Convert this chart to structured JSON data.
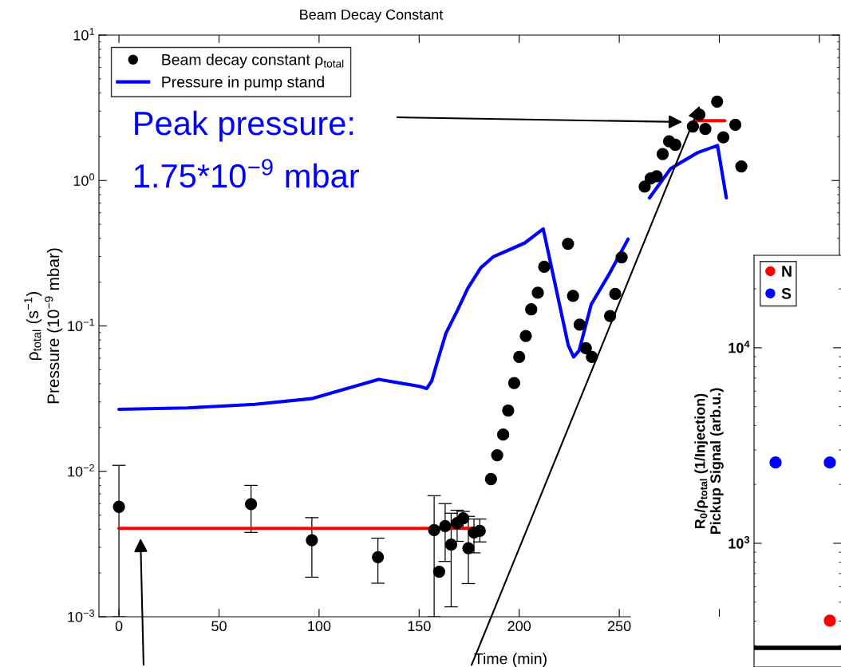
{
  "chart_data": [
    {
      "type": "scatter",
      "title": "Beam Decay Constant",
      "xlabel": "Time (min)",
      "ylabel": "ρ$_{total}$ (s$^{−1}$)\nPressure (10$^{−9}$ mbar)",
      "log": "y",
      "grid": false,
      "legend": "top left",
      "marker": "circle",
      "xlim": [
        -10,
        360
      ],
      "xticks": [
        0,
        50,
        100,
        150,
        200,
        250,
        {
          "value": 300,
          "label": null
        },
        {
          "value": 350,
          "label": null
        }
      ],
      "ylim": [
        0.001,
        10
      ],
      "yticks": [
        {
          "value": 0.001,
          "label": "10$^{−3}$"
        },
        {
          "value": 0.01,
          "label": "10$^{−2}$"
        },
        {
          "value": 0.1,
          "label": "10$^{−1}$"
        },
        {
          "value": 1,
          "label": "10$^{0}$"
        },
        {
          "value": 10,
          "label": "10$^{1}$"
        }
      ],
      "annotations": [
        "Peak pressure:\n1.75*10$^{−9}$ mbar"
      ],
      "series": [
        {
          "name": "Beam decay constant ρ$_{total}$",
          "type": "scatter",
          "color": "#000000",
          "x": [
            0,
            66,
            96.4,
            129.4,
            157.5,
            160,
            163,
            166,
            169,
            172,
            174.6,
            177.4,
            180.3,
            185.9,
            189,
            192,
            194.5,
            197.5,
            200,
            203.3,
            206,
            209.3,
            212.5,
            224.4,
            226.9,
            230.2,
            233.3,
            236.3,
            245.4,
            248,
            251.2,
            262.7,
            265.7,
            268.7,
            271.7,
            274.9,
            278,
            286.8,
            290,
            293,
            298.9,
            302,
            308,
            311
          ],
          "values": [
            0.0057,
            0.00595,
            0.00336,
            0.00257,
            0.00394,
            0.00204,
            0.0042,
            0.00313,
            0.0044,
            0.00475,
            0.00296,
            0.0038,
            0.0039,
            0.00884,
            0.0129,
            0.0179,
            0.0262,
            0.0405,
            0.0612,
            0.0853,
            0.13,
            0.169,
            0.255,
            0.367,
            0.161,
            0.102,
            0.0703,
            0.0612,
            0.117,
            0.166,
            0.296,
            0.908,
            1.033,
            1.07,
            1.52,
            1.86,
            1.76,
            2.35,
            2.84,
            2.26,
            3.49,
            1.98,
            2.42,
            1.25
          ],
          "errors": [
            [
              0.001,
              0.011
            ],
            [
              0.0038,
              0.008
            ],
            [
              0.00187,
              0.0048
            ],
            [
              0.0017,
              0.00347
            ],
            [
              0.001,
              0.0068
            ],
            null,
            [
              0.0024,
              0.006
            ],
            [
              0.00117,
              0.00515
            ],
            [
              0.0033,
              0.0054
            ],
            [
              0.0041,
              0.0053
            ],
            [
              0.00169,
              0.0049
            ],
            [
              0.00275,
              0.0047
            ],
            [
              0.00327,
              0.0047
            ],
            null,
            null,
            null,
            null,
            null,
            null,
            null,
            null,
            null,
            null,
            null,
            null,
            null,
            null,
            null,
            null,
            null,
            null,
            null,
            null,
            null,
            null,
            null,
            null,
            null,
            null,
            null,
            null,
            null,
            null,
            null
          ],
          "xerrors": [
            null,
            null,
            null,
            null,
            null,
            null,
            null,
            null,
            null,
            null,
            null,
            null,
            null,
            2,
            2,
            2,
            2,
            2,
            2,
            2,
            2,
            2,
            2,
            2,
            2,
            2,
            2,
            2,
            2,
            2,
            2,
            2,
            2,
            2,
            2,
            2,
            2,
            2,
            2,
            2,
            2,
            2,
            2,
            2
          ]
        },
        {
          "name": "Pressure in pump stand",
          "type": "line",
          "marker": "none",
          "color": "#0000ff",
          "x": [
            0,
            34.3,
            68,
            96.2,
            129.8,
            150.6,
            153.8,
            156.3,
            159.5,
            163.4,
            169.2,
            174.3,
            180.8,
            187.2,
            194.9,
            202.8,
            212,
            224.5,
            227.2,
            229.9,
            236,
            244.8,
            254.4,
            259,
            265.1,
            275.7,
            289.1,
            299.1,
            303.5
          ],
          "values": [
            0.0267,
            0.0273,
            0.0289,
            0.0316,
            0.0429,
            0.0383,
            0.0371,
            0.0419,
            0.0592,
            0.0891,
            0.1285,
            0.1816,
            0.251,
            0.3,
            0.333,
            0.372,
            0.465,
            0.0738,
            0.0612,
            0.0675,
            0.1406,
            0.2255,
            0.395,
            null,
            0.76,
            1.208,
            1.554,
            1.741,
            0.76
          ]
        },
        {
          "type": "line",
          "marker": "none",
          "color": "#ff0000",
          "x": [
            0,
            180
          ],
          "values": [
            0.00405,
            0.00405
          ]
        },
        {
          "type": "line",
          "marker": "none",
          "color": "#ff0000",
          "x": [
            287.7,
            302.7
          ],
          "values": [
            2.58,
            2.58
          ]
        }
      ]
    },
    {
      "type": "scatter",
      "ylabel": "R$_{0}$/ρ$_{total}$ (1/Injection)\nPickup Signal (arb.u.)",
      "log": "y",
      "grid": false,
      "legend": "top left",
      "marker": "circle",
      "categories": [
        null,
        null
      ],
      "ylim": [
        233,
        29700
      ],
      "yticks": [
        {
          "value": 1000,
          "label": "10$^{3}$"
        },
        {
          "value": 10000,
          "label": "10$^{4}$"
        }
      ],
      "ref_lines": [
        {
          "axis": "y",
          "value": 292,
          "color": "#000000"
        }
      ],
      "series": [
        {
          "name": "N",
          "color": "#ff0000",
          "values": [
            null,
            402
          ]
        },
        {
          "name": "S",
          "color": "#0000ff",
          "values": [
            2590,
            2590
          ]
        }
      ]
    }
  ]
}
